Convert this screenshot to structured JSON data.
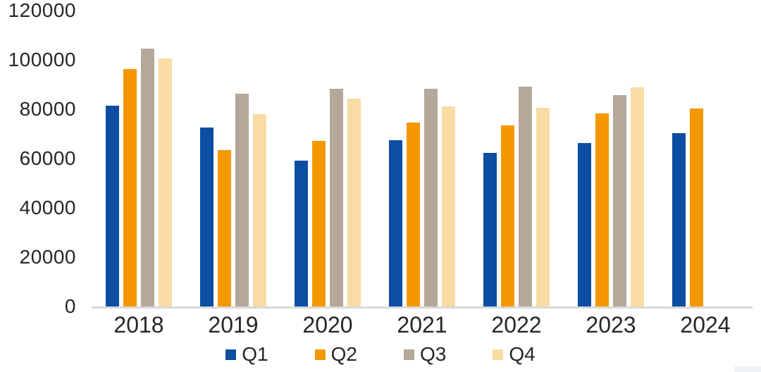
{
  "chart_data": {
    "type": "bar",
    "title": "",
    "xlabel": "",
    "ylabel": "",
    "categories": [
      "2018",
      "2019",
      "2020",
      "2021",
      "2022",
      "2023",
      "2024"
    ],
    "series": [
      {
        "name": "Q1",
        "color": "#0B4EA2",
        "values": [
          81400,
          72600,
          59100,
          67400,
          62400,
          66300,
          70300
        ]
      },
      {
        "name": "Q2",
        "color": "#F59800",
        "values": [
          96300,
          63500,
          67100,
          74500,
          73500,
          78300,
          80300
        ]
      },
      {
        "name": "Q3",
        "color": "#B4A89B",
        "values": [
          104600,
          86300,
          88300,
          88200,
          89200,
          85600,
          null
        ]
      },
      {
        "name": "Q4",
        "color": "#F8DCA4",
        "values": [
          100600,
          77900,
          84200,
          81100,
          80600,
          88900,
          null
        ]
      }
    ],
    "ylim": [
      0,
      120000
    ],
    "ytick_step": 20000,
    "yticks": [
      "0",
      "20000",
      "40000",
      "60000",
      "80000",
      "100000",
      "120000"
    ],
    "grid": false,
    "legend_position": "bottom"
  },
  "colors": {
    "background": "#FFFFFF",
    "axis_line": "#D9D9D9",
    "text": "#262626"
  }
}
